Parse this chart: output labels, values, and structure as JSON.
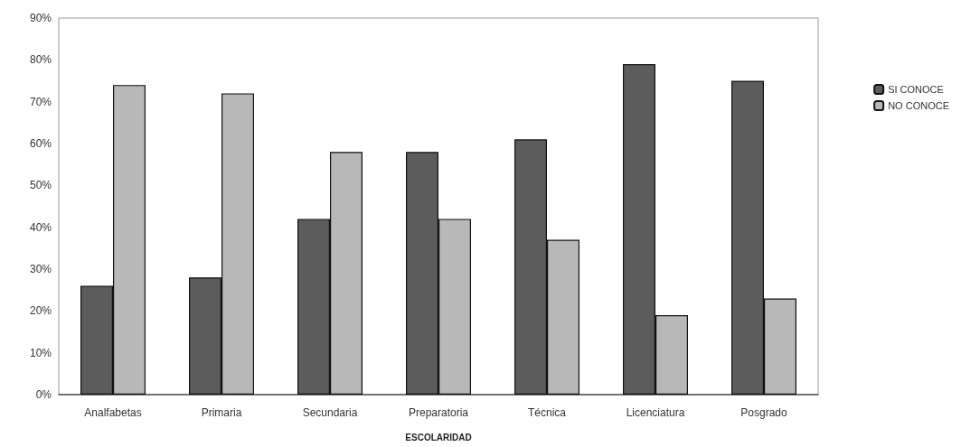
{
  "chart_data": {
    "type": "bar",
    "xlabel": "ESCOLARIDAD",
    "categories": [
      "Analfabetas",
      "Primaria",
      "Secundaria",
      "Preparatoria",
      "Técnica",
      "Licenciatura",
      "Posgrado"
    ],
    "series": [
      {
        "name": "SI CONOCE",
        "color": "#5c5c5c",
        "values": [
          26,
          28,
          42,
          58,
          61,
          79,
          75
        ]
      },
      {
        "name": "NO CONOCE",
        "color": "#b8b8b8",
        "values": [
          74,
          72,
          58,
          42,
          37,
          19,
          23
        ]
      }
    ],
    "ylim": [
      0,
      90
    ],
    "yticks": [
      {
        "value": 0,
        "label": "0%"
      },
      {
        "value": 10,
        "label": "10%"
      },
      {
        "value": 20,
        "label": "20%"
      },
      {
        "value": 30,
        "label": "30%"
      },
      {
        "value": 40,
        "label": "40%"
      },
      {
        "value": 50,
        "label": "50%"
      },
      {
        "value": 60,
        "label": "60%"
      },
      {
        "value": 70,
        "label": "70%"
      },
      {
        "value": 80,
        "label": "80%"
      },
      {
        "value": 90,
        "label": "90%"
      }
    ],
    "grid": false,
    "legend": "right"
  }
}
